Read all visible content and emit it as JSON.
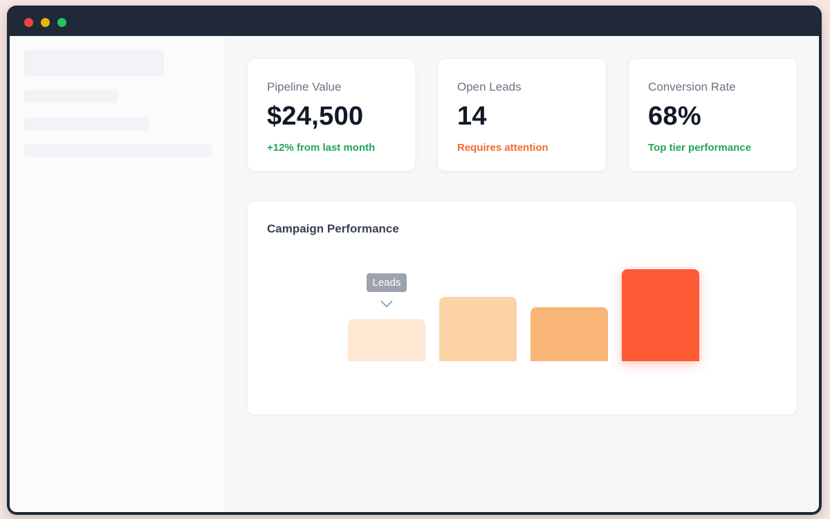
{
  "window": {
    "controls": [
      "close",
      "minimize",
      "zoom"
    ],
    "colors": {
      "close": "#ef4444",
      "minimize": "#eab308",
      "zoom": "#22c55e"
    }
  },
  "metrics": [
    {
      "label": "Pipeline Value",
      "value": "$24,500",
      "note": "+12% from last month",
      "note_color": "#22a559"
    },
    {
      "label": "Open Leads",
      "value": "14",
      "note": "Requires attention",
      "note_color": "#f26b2a"
    },
    {
      "label": "Conversion Rate",
      "value": "68%",
      "note": "Top tier performance",
      "note_color": "#22a559"
    }
  ],
  "campaign_chart": {
    "title": "Campaign Performance",
    "tooltip": "Leads"
  },
  "chart_data": {
    "type": "bar",
    "title": "Campaign Performance",
    "categories": [
      "",
      "",
      "",
      ""
    ],
    "values": [
      46,
      70,
      59,
      100
    ],
    "ylim": [
      0,
      100
    ],
    "colors": [
      "#fde8d4",
      "#fcd3a6",
      "#fab677",
      "#ff5a36"
    ],
    "highlighted_index": 3,
    "tooltip": {
      "text": "Leads",
      "bar_index": 0
    },
    "grid": false,
    "legend": "none"
  }
}
